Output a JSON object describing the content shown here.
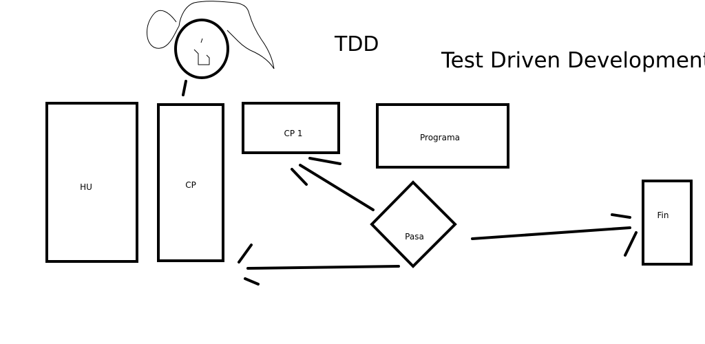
{
  "title": "TDD",
  "subtitle": "Test Driven Development",
  "nodes": {
    "hu": "HU",
    "cp": "CP",
    "cp1": "CP 1",
    "programa": "Programa",
    "pasa": "Pasa",
    "fin": "Fin"
  },
  "icons": {
    "stick_figure": "person-sketch-icon"
  },
  "colors": {
    "ink": "#000000",
    "background": "#ffffff"
  }
}
